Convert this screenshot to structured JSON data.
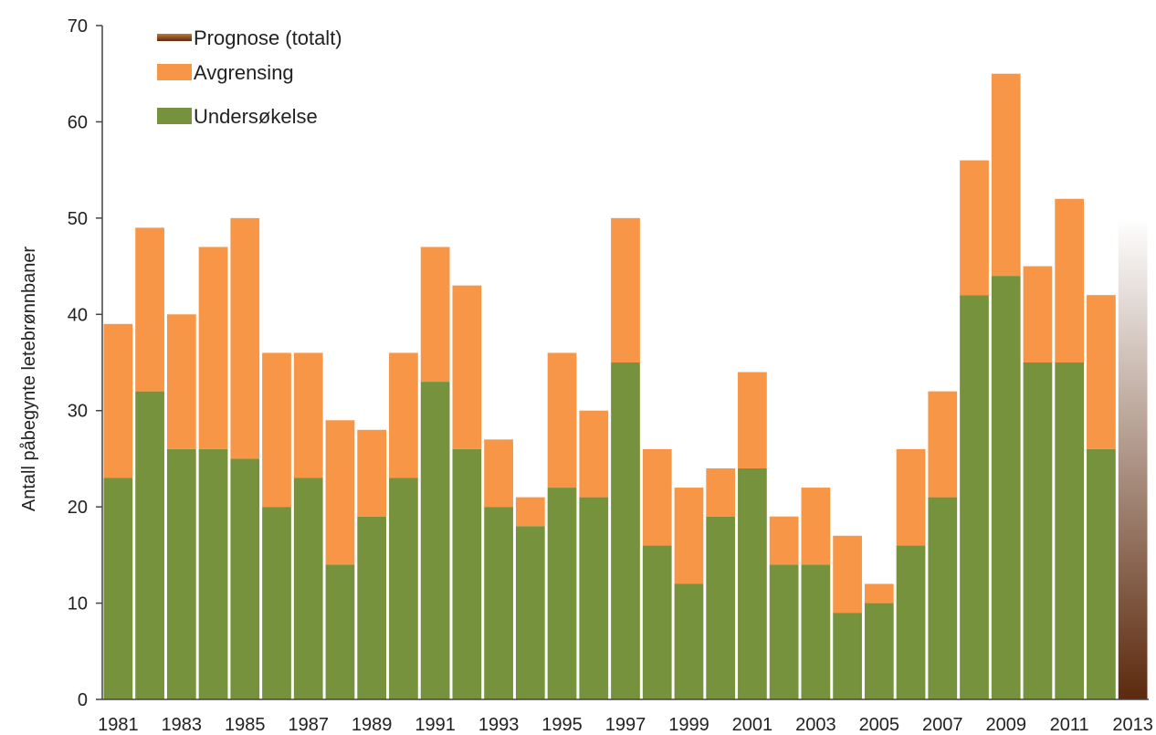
{
  "chart_data": {
    "type": "bar",
    "stacked": true,
    "title": "",
    "xlabel": "",
    "ylabel": "Antall påbegynte letebrønnbaner",
    "ylim": [
      0,
      70
    ],
    "yticks": [
      0,
      10,
      20,
      30,
      40,
      50,
      60,
      70
    ],
    "grid": false,
    "legend_position": "top-left",
    "categories": [
      "1981",
      "1982",
      "1983",
      "1984",
      "1985",
      "1986",
      "1987",
      "1988",
      "1989",
      "1990",
      "1991",
      "1992",
      "1993",
      "1994",
      "1995",
      "1996",
      "1997",
      "1998",
      "1999",
      "2000",
      "2001",
      "2002",
      "2003",
      "2004",
      "2005",
      "2006",
      "2007",
      "2008",
      "2009",
      "2010",
      "2011",
      "2012",
      "2013"
    ],
    "x_tick_labels": [
      "1981",
      "1983",
      "1985",
      "1987",
      "1989",
      "1991",
      "1993",
      "1995",
      "1997",
      "1999",
      "2001",
      "2003",
      "2005",
      "2007",
      "2009",
      "2011",
      "2013"
    ],
    "series": [
      {
        "name": "Undersøkelse",
        "color": "#76923C",
        "values": [
          23,
          32,
          26,
          26,
          25,
          20,
          23,
          14,
          19,
          23,
          33,
          26,
          20,
          18,
          22,
          21,
          35,
          16,
          12,
          19,
          24,
          14,
          14,
          9,
          10,
          16,
          21,
          42,
          44,
          35,
          35,
          26,
          null
        ]
      },
      {
        "name": "Avgrensing",
        "color": "#F79646",
        "values": [
          16,
          17,
          14,
          21,
          25,
          16,
          13,
          15,
          9,
          13,
          14,
          17,
          7,
          3,
          14,
          9,
          15,
          10,
          10,
          5,
          10,
          5,
          8,
          8,
          2,
          10,
          11,
          14,
          21,
          10,
          17,
          16,
          null
        ]
      },
      {
        "name": "Prognose (totalt)",
        "color_top": "#FFFFFF",
        "color_bottom": "#5C2A0E",
        "values": [
          null,
          null,
          null,
          null,
          null,
          null,
          null,
          null,
          null,
          null,
          null,
          null,
          null,
          null,
          null,
          null,
          null,
          null,
          null,
          null,
          null,
          null,
          null,
          null,
          null,
          null,
          null,
          null,
          null,
          null,
          null,
          null,
          50
        ]
      }
    ],
    "legend": [
      "Prognose (totalt)",
      "Avgrensing",
      "Undersøkelse"
    ]
  }
}
